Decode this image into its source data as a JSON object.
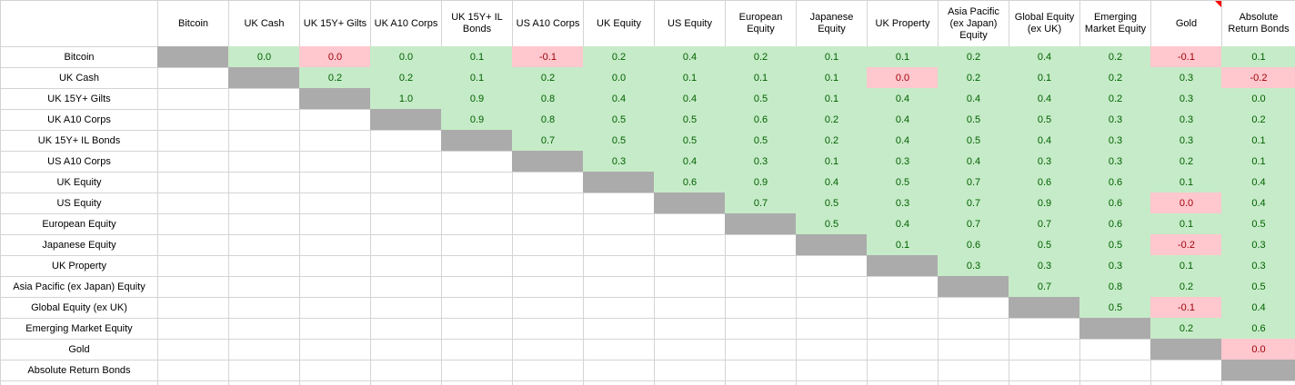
{
  "colors": {
    "positive_bg": "#c6ebc8",
    "positive_text": "#006100",
    "negative_bg": "#ffc7ce",
    "negative_text": "#9c0006",
    "diagonal_bg": "#ababab",
    "gridline": "#d4d4d4",
    "text": "#000000",
    "background": "#ffffff",
    "comment_marker": "#ff0000"
  },
  "ui": {
    "corner_label": "",
    "comment_marker_column_index": 14
  },
  "chart_data": {
    "type": "heatmap",
    "value_format": "1 decimal place",
    "value_range": [
      -0.2,
      1.0
    ],
    "categories": [
      "Bitcoin",
      "UK Cash",
      "UK 15Y+ Gilts",
      "UK A10 Corps",
      "UK 15Y+ IL Bonds",
      "US A10 Corps",
      "UK Equity",
      "US Equity",
      "European Equity",
      "Japanese Equity",
      "UK Property",
      "Asia Pacific (ex Japan) Equity",
      "Global Equity (ex UK)",
      "Emerging Market Equity",
      "Gold",
      "Absolute Return Bonds"
    ],
    "rows": [
      {
        "name": "Bitcoin",
        "values_after_diagonal": [
          0.0,
          0.0,
          0.0,
          0.1,
          -0.1,
          0.2,
          0.4,
          0.2,
          0.1,
          0.1,
          0.2,
          0.4,
          0.2,
          -0.1,
          0.1
        ],
        "pink_offsets": [
          1,
          4,
          13
        ]
      },
      {
        "name": "UK Cash",
        "values_after_diagonal": [
          0.2,
          0.2,
          0.1,
          0.2,
          0.0,
          0.1,
          0.1,
          0.1,
          0.0,
          0.2,
          0.1,
          0.2,
          0.3,
          -0.2
        ],
        "pink_offsets": [
          8,
          13
        ]
      },
      {
        "name": "UK 15Y+ Gilts",
        "values_after_diagonal": [
          1.0,
          0.9,
          0.8,
          0.4,
          0.4,
          0.5,
          0.1,
          0.4,
          0.4,
          0.4,
          0.2,
          0.3,
          0.0
        ],
        "pink_offsets": []
      },
      {
        "name": "UK A10 Corps",
        "values_after_diagonal": [
          0.9,
          0.8,
          0.5,
          0.5,
          0.6,
          0.2,
          0.4,
          0.5,
          0.5,
          0.3,
          0.3,
          0.2
        ],
        "pink_offsets": []
      },
      {
        "name": "UK 15Y+ IL Bonds",
        "values_after_diagonal": [
          0.7,
          0.5,
          0.5,
          0.5,
          0.2,
          0.4,
          0.5,
          0.4,
          0.3,
          0.3,
          0.1
        ],
        "pink_offsets": []
      },
      {
        "name": "US A10 Corps",
        "values_after_diagonal": [
          0.3,
          0.4,
          0.3,
          0.1,
          0.3,
          0.4,
          0.3,
          0.3,
          0.2,
          0.1
        ],
        "pink_offsets": []
      },
      {
        "name": "UK Equity",
        "values_after_diagonal": [
          0.6,
          0.9,
          0.4,
          0.5,
          0.7,
          0.6,
          0.6,
          0.1,
          0.4
        ],
        "pink_offsets": []
      },
      {
        "name": "US Equity",
        "values_after_diagonal": [
          0.7,
          0.5,
          0.3,
          0.7,
          0.9,
          0.6,
          0.0,
          0.4
        ],
        "pink_offsets": [
          6
        ]
      },
      {
        "name": "European Equity",
        "values_after_diagonal": [
          0.5,
          0.4,
          0.7,
          0.7,
          0.6,
          0.1,
          0.5
        ],
        "pink_offsets": []
      },
      {
        "name": "Japanese Equity",
        "values_after_diagonal": [
          0.1,
          0.6,
          0.5,
          0.5,
          -0.2,
          0.3
        ],
        "pink_offsets": [
          4
        ]
      },
      {
        "name": "UK Property",
        "values_after_diagonal": [
          0.3,
          0.3,
          0.3,
          0.1,
          0.3
        ],
        "pink_offsets": []
      },
      {
        "name": "Asia Pacific (ex Japan) Equity",
        "values_after_diagonal": [
          0.7,
          0.8,
          0.2,
          0.5
        ],
        "pink_offsets": []
      },
      {
        "name": "Global Equity (ex UK)",
        "values_after_diagonal": [
          0.5,
          -0.1,
          0.4
        ],
        "pink_offsets": [
          1
        ]
      },
      {
        "name": "Emerging Market Equity",
        "values_after_diagonal": [
          0.2,
          0.6
        ],
        "pink_offsets": []
      },
      {
        "name": "Gold",
        "values_after_diagonal": [
          0.0
        ],
        "pink_offsets": [
          0
        ]
      },
      {
        "name": "Absolute Return Bonds",
        "values_after_diagonal": [],
        "pink_offsets": []
      }
    ]
  }
}
